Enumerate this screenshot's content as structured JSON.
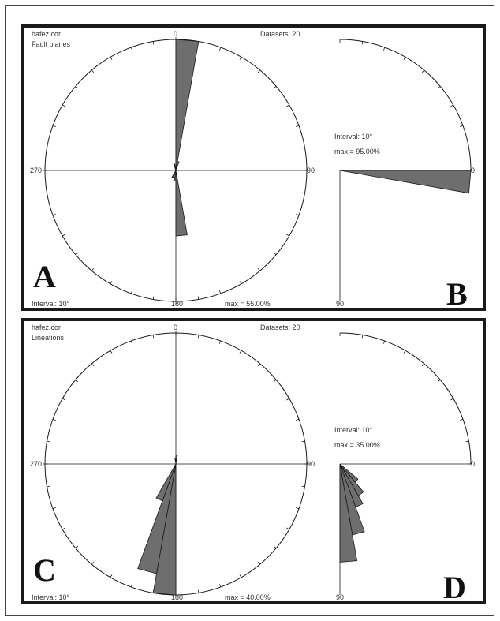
{
  "panel_top": {
    "file": "hafez.cor",
    "title": "Fault planes",
    "datasets": "Datasets: 20",
    "interval": "Interval: 10°",
    "max": "max = 55.00%",
    "deg_0": "0",
    "deg_90": "90",
    "deg_180": "180",
    "deg_270": "270",
    "letter_main": "A",
    "side": {
      "interval": "Interval: 10°",
      "max": "max = 95.00%",
      "deg_0": "0",
      "deg_90": "90",
      "letter": "B"
    }
  },
  "panel_bottom": {
    "file": "hafez.cor",
    "title": "Lineations",
    "datasets": "Datasets: 20",
    "interval": "Interval: 10°",
    "max": "max = 40.00%",
    "deg_0": "0",
    "deg_90": "90",
    "deg_180": "180",
    "deg_270": "270",
    "letter_main": "C",
    "side": {
      "interval": "Interval: 10°",
      "max": "max = 35.00%",
      "deg_0": "0",
      "deg_90": "90",
      "letter": "D"
    }
  },
  "roses": {
    "A": {
      "max_percent": 55,
      "petals": [
        [
          0,
          10,
          1.0
        ],
        [
          170,
          180,
          0.5
        ],
        [
          180,
          190,
          0.08
        ],
        [
          10,
          20,
          0.07
        ],
        [
          200,
          210,
          0.06
        ],
        [
          340,
          350,
          0.05
        ],
        [
          180,
          200,
          0.03
        ]
      ]
    },
    "B": {
      "max_percent": 95,
      "petals": [
        [
          0,
          10,
          1.0
        ]
      ]
    },
    "C": {
      "max_percent": 40,
      "petals": [
        [
          180,
          190,
          1.0
        ],
        [
          190,
          200,
          0.85
        ],
        [
          200,
          210,
          0.3
        ],
        [
          0,
          10,
          0.07
        ],
        [
          350,
          360,
          0.04
        ]
      ]
    },
    "D": {
      "max_percent": 35,
      "petals": [
        [
          40,
          50,
          0.18
        ],
        [
          50,
          60,
          0.28
        ],
        [
          60,
          70,
          0.35
        ],
        [
          70,
          80,
          0.55
        ],
        [
          80,
          90,
          0.75
        ]
      ]
    }
  },
  "style": {
    "petal_fill": "#6e6e6e",
    "line_color": "#1a1a1a"
  }
}
